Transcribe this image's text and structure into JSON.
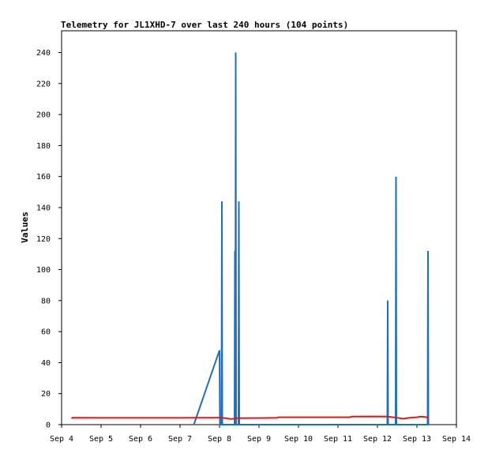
{
  "chart_data": {
    "type": "line",
    "title": "Telemetry for JL1XHD-7 over last 240 hours (104 points)",
    "xlabel": "",
    "ylabel": "Values",
    "xlim": [
      0,
      10
    ],
    "ylim": [
      0,
      254
    ],
    "x_ticks": [
      "Sep 4",
      "Sep 5",
      "Sep 6",
      "Sep 7",
      "Sep 8",
      "Sep 9",
      "Sep 10",
      "Sep 11",
      "Sep 12",
      "Sep 13",
      "Sep 14"
    ],
    "y_ticks": [
      0,
      20,
      40,
      60,
      80,
      100,
      120,
      140,
      160,
      180,
      200,
      220,
      240
    ],
    "grid": false,
    "colors": {
      "blue": "#1f6fbf",
      "red": "#e01818",
      "black": "#000000"
    },
    "series": [
      {
        "color": "#000000",
        "points": [
          [
            0.25,
            0
          ],
          [
            9.3,
            0
          ]
        ]
      },
      {
        "color": "#1f6fbf",
        "points": [
          [
            3.35,
            0
          ],
          [
            4.0,
            48
          ],
          [
            4.01,
            0
          ],
          [
            4.05,
            0
          ],
          [
            4.06,
            144
          ],
          [
            4.07,
            0
          ],
          [
            4.38,
            0
          ],
          [
            4.39,
            112
          ],
          [
            4.4,
            0
          ],
          [
            4.4,
            0
          ],
          [
            4.41,
            240
          ],
          [
            4.42,
            0
          ],
          [
            4.48,
            0
          ],
          [
            4.49,
            144
          ],
          [
            4.5,
            0
          ],
          [
            8.25,
            0
          ],
          [
            8.26,
            80
          ],
          [
            8.27,
            0
          ],
          [
            8.46,
            0
          ],
          [
            8.47,
            160
          ],
          [
            8.48,
            0
          ],
          [
            9.27,
            0
          ],
          [
            9.28,
            112
          ],
          [
            9.29,
            0
          ]
        ]
      },
      {
        "color": "#e01818",
        "points": [
          [
            0.25,
            4
          ],
          [
            0.28,
            4.5
          ],
          [
            1.0,
            4.4
          ],
          [
            2.0,
            4.4
          ],
          [
            3.0,
            4.4
          ],
          [
            4.0,
            4.5
          ],
          [
            4.15,
            4.2
          ],
          [
            4.3,
            3.6
          ],
          [
            4.45,
            4.2
          ],
          [
            5.0,
            4.3
          ],
          [
            5.45,
            4.4
          ],
          [
            5.5,
            4.8
          ],
          [
            6.5,
            4.8
          ],
          [
            7.3,
            4.8
          ],
          [
            7.35,
            5.2
          ],
          [
            8.0,
            5.3
          ],
          [
            8.25,
            5.2
          ],
          [
            8.5,
            4.5
          ],
          [
            8.65,
            3.8
          ],
          [
            8.8,
            4.4
          ],
          [
            9.0,
            4.8
          ],
          [
            9.1,
            5.2
          ],
          [
            9.2,
            5.0
          ],
          [
            9.3,
            4.4
          ]
        ]
      }
    ]
  }
}
